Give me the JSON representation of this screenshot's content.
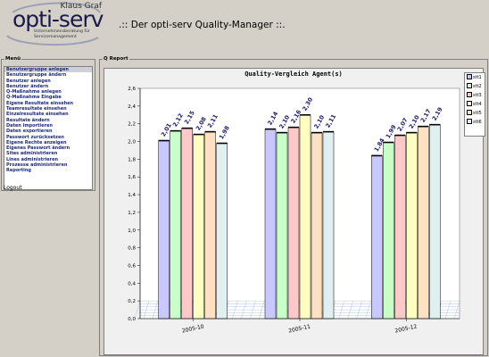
{
  "logo": {
    "author": "Klaus Graf",
    "brand": "opti-serv",
    "tagline": "Unternehmensberatung für Servicemanagement"
  },
  "app_title": ".:: Der opti-serv Quality-Manager ::.",
  "menu": {
    "legend": "Menü",
    "items": [
      "Benutzergruppe anlegen",
      "Benutzergruppe ändern",
      "Benutzer anlegen",
      "Benutzer ändern",
      "Q-Maßnahme anlegen",
      "Q-Maßnahme Eingabe",
      "Eigene Resultate einsehen",
      "Teamresultate einsehen",
      "Einzelresultate einsehen",
      "Resultate ändern",
      "Daten importieren",
      "Daten exportieren",
      "Passwort zurücksetzen",
      "Eigene Rechte anzeigen",
      "Eigenes Passwort ändern",
      "Sites administrieren",
      "Lines administrieren",
      "Prozesse administrieren",
      "Reporting"
    ],
    "selected_index": 0,
    "logout": "Logout"
  },
  "report": {
    "legend": "Q Report"
  },
  "chart_data": {
    "type": "bar",
    "title": "Quality-Vergleich Agent(s)",
    "categories": [
      "2005-10",
      "2005-11",
      "2005-12"
    ],
    "series": [
      {
        "name": "stt1",
        "color": "#c8c8ff",
        "values": [
          2.01,
          2.14,
          1.84
        ]
      },
      {
        "name": "stt2",
        "color": "#c8ffc8",
        "values": [
          2.12,
          2.1,
          1.99
        ]
      },
      {
        "name": "stt3",
        "color": "#ffc8c8",
        "values": [
          2.15,
          2.16,
          2.07
        ]
      },
      {
        "name": "stt4",
        "color": "#ffffc0",
        "values": [
          2.08,
          2.3,
          2.1
        ]
      },
      {
        "name": "stt5",
        "color": "#ffe0c0",
        "values": [
          2.11,
          2.1,
          2.17
        ]
      },
      {
        "name": "stt6",
        "color": "#e0f0f0",
        "values": [
          1.98,
          2.11,
          2.19
        ]
      }
    ],
    "value_labels": [
      [
        "2,01",
        "2,12",
        "2,15",
        "2,08",
        "2,11",
        "1,98"
      ],
      [
        "2,14",
        "2,10",
        "2,16",
        "2,30",
        "2,10",
        "2,11"
      ],
      [
        "1,84",
        "1,99",
        "2,07",
        "2,10",
        "2,17",
        "2,19"
      ]
    ],
    "ylim": [
      0,
      2.6
    ],
    "yticks": [
      "0,0",
      "0,2",
      "0,4",
      "0,6",
      "0,8",
      "1,0",
      "1,2",
      "1,4",
      "1,6",
      "1,8",
      "2,0",
      "2,2",
      "2,4",
      "2,6"
    ],
    "grid": false,
    "legend_position": "top-right"
  }
}
